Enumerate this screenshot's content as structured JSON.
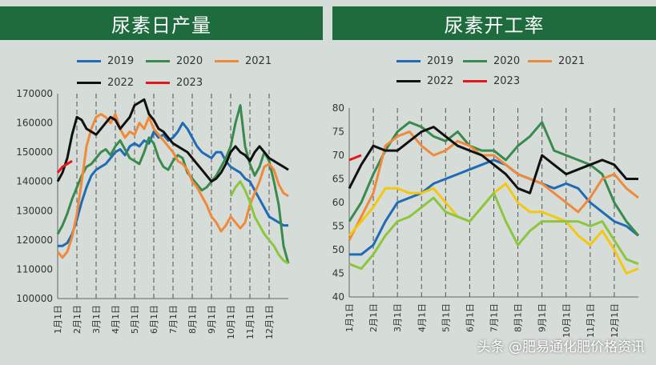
{
  "watermark": "头条 @肥易通化肥价格资讯",
  "colors": {
    "2019": "#1f6bb5",
    "2020": "#3a8a4e",
    "2021": "#ef8a3a",
    "2022": "#111111",
    "2023": "#e8161b",
    "yellow": "#f2c811",
    "lightgreen": "#8cc63f"
  },
  "chart_data": [
    {
      "type": "line",
      "title": "尿素日产量",
      "x_ticks": [
        "1月1日",
        "2月1日",
        "3月1日",
        "4月1日",
        "5月1日",
        "6月1日",
        "7月1日",
        "8月1日",
        "9月1日",
        "10月1日",
        "11月1日",
        "12月1日"
      ],
      "y_ticks": [
        "170000",
        "160000",
        "150000",
        "140000",
        "130000",
        "120000",
        "110000",
        "100000"
      ],
      "ylim": [
        100000,
        170000
      ],
      "grid": "vertical dashed at month starts",
      "legend_position": "top",
      "legend": [
        "2019",
        "2020",
        "2021",
        "2022",
        "2023"
      ],
      "x": [
        0,
        0.25,
        0.5,
        0.75,
        1,
        1.25,
        1.5,
        1.75,
        2,
        2.25,
        2.5,
        2.75,
        3,
        3.25,
        3.5,
        3.75,
        4,
        4.25,
        4.5,
        4.75,
        5,
        5.25,
        5.5,
        5.75,
        6,
        6.25,
        6.5,
        6.75,
        7,
        7.25,
        7.5,
        7.75,
        8,
        8.25,
        8.5,
        8.75,
        9,
        9.25,
        9.5,
        9.75,
        10,
        10.25,
        10.5,
        10.75,
        11,
        11.25,
        11.5,
        11.75,
        12
      ],
      "series": [
        {
          "name": "2019",
          "color_key": "2019",
          "values": [
            118000,
            118000,
            119000,
            122000,
            127000,
            133000,
            138000,
            142000,
            144000,
            145000,
            146000,
            148000,
            150000,
            151000,
            149000,
            152000,
            153000,
            152000,
            154000,
            153000,
            157000,
            155000,
            156000,
            154000,
            155000,
            157000,
            160000,
            158000,
            155000,
            152000,
            150000,
            149000,
            148000,
            150000,
            150000,
            147000,
            145000,
            144000,
            143000,
            141000,
            140000,
            137000,
            134000,
            131000,
            128000,
            127000,
            126000,
            125000,
            125000
          ]
        },
        {
          "name": "2020",
          "color_key": "2020",
          "values": [
            122000,
            125000,
            129000,
            134000,
            138000,
            142000,
            145000,
            146000,
            148000,
            150000,
            151000,
            149000,
            152000,
            154000,
            151000,
            148000,
            147000,
            146000,
            150000,
            155000,
            153000,
            148000,
            145000,
            144000,
            147000,
            149000,
            148000,
            143000,
            141000,
            139000,
            137000,
            138000,
            140000,
            142000,
            145000,
            148000,
            152000,
            160000,
            166000,
            152000,
            146000,
            142000,
            145000,
            150000,
            147000,
            140000,
            132000,
            118000,
            112000
          ]
        },
        {
          "name": "2021",
          "color_key": "2021",
          "values": [
            116000,
            114000,
            116000,
            121000,
            129000,
            140000,
            152000,
            158000,
            162000,
            163000,
            162000,
            160000,
            163000,
            158000,
            155000,
            157000,
            156000,
            160000,
            158000,
            162000,
            158000,
            156000,
            154000,
            152000,
            150000,
            147000,
            146000,
            144000,
            140000,
            138000,
            135000,
            132000,
            128000,
            126000,
            123000,
            125000,
            128000,
            126000,
            124000,
            126000,
            132000,
            136000,
            140000,
            145000,
            146000,
            144000,
            139000,
            136000,
            135000
          ]
        },
        {
          "name": "2022",
          "color_key": "2022",
          "values": [
            140000,
            143000,
            148000,
            156000,
            162000,
            161000,
            158000,
            157000,
            156000,
            158000,
            160000,
            162000,
            161000,
            158000,
            160000,
            162000,
            166000,
            167000,
            168000,
            163000,
            161000,
            158000,
            157000,
            155000,
            153000,
            152000,
            151000,
            150000,
            148000,
            146000,
            144000,
            142000,
            140000,
            141000,
            143000,
            146000,
            150000,
            152000,
            150000,
            149000,
            147000,
            150000,
            152000,
            150000,
            148000,
            147000,
            146000,
            145000,
            144000
          ]
        },
        {
          "name": "2023",
          "color_key": "2023",
          "values": [
            143000,
            145000,
            146000,
            147000,
            null,
            null,
            null,
            null,
            null,
            null,
            null,
            null,
            null,
            null,
            null,
            null,
            null,
            null,
            null,
            null,
            null,
            null,
            null,
            null,
            null,
            null,
            null,
            null,
            null,
            null,
            null,
            null,
            null,
            null,
            null,
            null,
            null,
            null,
            null,
            null,
            null,
            null,
            null,
            null,
            null,
            null,
            null,
            null,
            null
          ]
        },
        {
          "name": "",
          "color_key": "lightgreen",
          "values": [
            null,
            null,
            null,
            null,
            null,
            null,
            null,
            null,
            null,
            null,
            null,
            null,
            null,
            null,
            null,
            null,
            null,
            null,
            null,
            null,
            null,
            null,
            null,
            null,
            null,
            null,
            null,
            null,
            null,
            null,
            null,
            null,
            null,
            null,
            null,
            null,
            135000,
            138000,
            140000,
            137000,
            133000,
            128000,
            125000,
            122000,
            120000,
            118000,
            115000,
            113000,
            112000
          ]
        }
      ]
    },
    {
      "type": "line",
      "title": "尿素开工率",
      "x_ticks": [
        "1月1日",
        "2月1日",
        "3月1日",
        "4月1日",
        "5月1日",
        "6月1日",
        "7月1日",
        "8月1日",
        "9月1日",
        "10月1日",
        "11月1日",
        "12月1日"
      ],
      "y_ticks": [
        "80",
        "75",
        "70",
        "65",
        "60",
        "55",
        "50",
        "45",
        "40"
      ],
      "ylim": [
        40,
        80
      ],
      "grid": "vertical dashed at month starts",
      "legend_position": "top",
      "legend": [
        "2019",
        "2020",
        "2021",
        "2022",
        "2023"
      ],
      "x": [
        0,
        0.5,
        1,
        1.5,
        2,
        2.5,
        3,
        3.5,
        4,
        4.5,
        5,
        5.5,
        6,
        6.5,
        7,
        7.5,
        8,
        8.5,
        9,
        9.5,
        10,
        10.5,
        11,
        11.5,
        12
      ],
      "series": [
        {
          "name": "2019",
          "color_key": "2019",
          "values": [
            49,
            49,
            51,
            56,
            60,
            61,
            62,
            64,
            65,
            66,
            67,
            68,
            69,
            68,
            66,
            65,
            64,
            63,
            64,
            63,
            60,
            58,
            56,
            55,
            53
          ]
        },
        {
          "name": "2020",
          "color_key": "2020",
          "values": [
            56,
            60,
            66,
            71,
            75,
            77,
            76,
            74,
            73,
            75,
            72,
            71,
            71,
            69,
            72,
            74,
            77,
            71,
            70,
            69,
            68,
            66,
            60,
            56,
            53
          ]
        },
        {
          "name": "2021",
          "color_key": "2021",
          "values": [
            52,
            57,
            62,
            72,
            74,
            75,
            72,
            70,
            71,
            73,
            72,
            70,
            70,
            68,
            66,
            65,
            64,
            62,
            60,
            58,
            61,
            65,
            66,
            63,
            61
          ]
        },
        {
          "name": "2022",
          "color_key": "2022",
          "values": [
            63,
            68,
            72,
            71,
            71,
            73,
            75,
            76,
            74,
            72,
            71,
            70,
            68,
            66,
            63,
            62,
            70,
            68,
            66,
            67,
            68,
            69,
            68,
            65,
            65
          ]
        },
        {
          "name": "2023",
          "color_key": "2023",
          "values": [
            69,
            70,
            null,
            null,
            null,
            null,
            null,
            null,
            null,
            null,
            null,
            null,
            null,
            null,
            null,
            null,
            null,
            null,
            null,
            null,
            null,
            null,
            null,
            null,
            null
          ]
        },
        {
          "name": "",
          "color_key": "yellow",
          "values": [
            53,
            56,
            59,
            63,
            63,
            62,
            62,
            63,
            60,
            57,
            56,
            59,
            62,
            64,
            60,
            58,
            58,
            57,
            56,
            53,
            51,
            54,
            50,
            45,
            46
          ]
        },
        {
          "name": "",
          "color_key": "lightgreen",
          "values": [
            47,
            46,
            49,
            53,
            56,
            57,
            59,
            61,
            58,
            57,
            56,
            59,
            62,
            56,
            51,
            54,
            56,
            56,
            56,
            56,
            55,
            56,
            52,
            48,
            47
          ]
        }
      ]
    }
  ]
}
